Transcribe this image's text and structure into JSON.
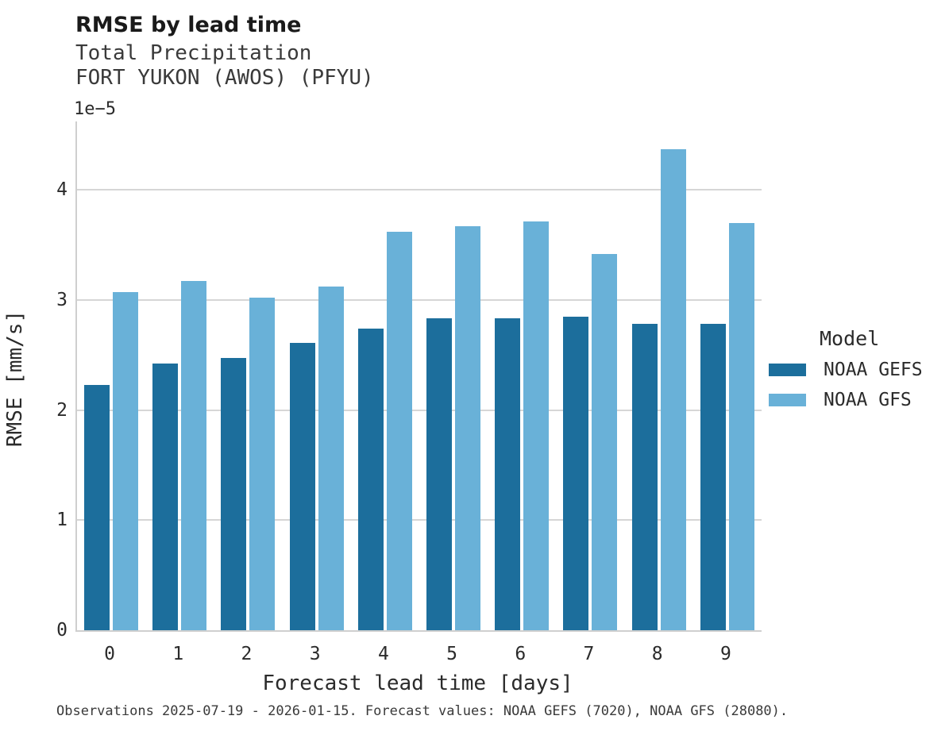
{
  "header": {
    "title": "RMSE by lead time",
    "subtitle1": "Total Precipitation",
    "subtitle2": "FORT YUKON (AWOS) (PFYU)"
  },
  "chart_data": {
    "type": "bar",
    "title": "RMSE by lead time",
    "subtitle": [
      "Total Precipitation",
      "FORT YUKON (AWOS) (PFYU)"
    ],
    "categories": [
      "0",
      "1",
      "2",
      "3",
      "4",
      "5",
      "6",
      "7",
      "8",
      "9"
    ],
    "series": [
      {
        "name": "NOAA GEFS",
        "color": "#1c6e9c",
        "values": [
          2.23,
          2.42,
          2.47,
          2.61,
          2.74,
          2.83,
          2.83,
          2.85,
          2.78,
          2.78
        ]
      },
      {
        "name": "NOAA GFS",
        "color": "#69b1d8",
        "values": [
          3.07,
          3.17,
          3.02,
          3.12,
          3.62,
          3.67,
          3.71,
          3.42,
          4.37,
          3.7
        ]
      }
    ],
    "value_unit": "mm/s",
    "value_multiplier": 1e-05,
    "offset_label": "1e−5",
    "xlabel": "Forecast lead time [days]",
    "ylabel": "RMSE [mm/s]",
    "yticks": [
      0,
      1,
      2,
      3,
      4
    ],
    "ylim": [
      0,
      4.62
    ],
    "grid": "horizontal",
    "legend_title": "Model",
    "legend_position": "right"
  },
  "legend": {
    "title": "Model",
    "entries": [
      {
        "label": "NOAA GEFS"
      },
      {
        "label": "NOAA GFS"
      }
    ]
  },
  "footer": {
    "text": "Observations 2025-07-19 - 2026-01-15. Forecast values: NOAA GEFS (7020), NOAA GFS (28080)."
  },
  "colors": {
    "gridline": "#d6d6d6",
    "axis_spine": "#cfcfcf",
    "bar_dark": "#1c6e9c",
    "bar_light": "#69b1d8"
  }
}
